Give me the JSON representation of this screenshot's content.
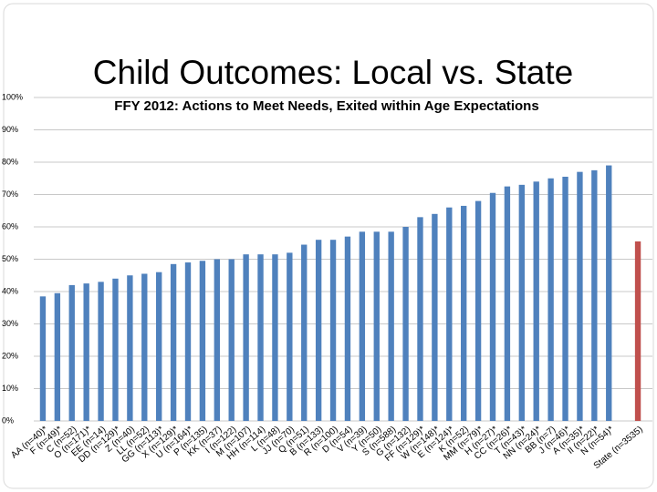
{
  "chart_data": {
    "type": "bar",
    "title": "Child Outcomes: Local vs. State",
    "subtitle": "FFY 2012: Actions to Meet Needs, Exited within Age Expectations",
    "categories": [
      "AA (n=40)*",
      "F (n=49)*",
      "C (n=52)",
      "O (n=171)*",
      "EE (n=14)",
      "DD (n=129)*",
      "Z (n=40)",
      "LL (n=52)",
      "GG (n=113)*",
      "X (n=129)*",
      "U (n=164)*",
      "P (n=135)",
      "KK (n=37)",
      "I (n=122)",
      "M (n=107)",
      "HH (n=114)",
      "L (n=48)",
      "JJ (n=70)",
      "Q (n=51)",
      "B (n=133)",
      "R (n=100)",
      "D (n=54)",
      "V (n=39)",
      "Y (n=50)",
      "S (n=588)",
      "G (n=132)",
      "FF (n=129)*",
      "W (n=148)*",
      "E (n=124)*",
      "K (n=52)",
      "MM (n=79)*",
      "H (n=27)*",
      "CC (n=26)*",
      "T (n=43)*",
      "NN (n=24)*",
      "BB (n=7)",
      "J (n=46)*",
      "A (n=35)*",
      "II (n=22)*",
      "N (n=54)*",
      null,
      "State (n=3535)"
    ],
    "values": [
      38.5,
      39.5,
      42,
      42.5,
      43,
      44,
      45,
      45.5,
      46,
      48.5,
      49,
      49.5,
      50,
      50,
      51.5,
      51.5,
      51.5,
      52,
      54.5,
      56,
      56,
      57,
      58.5,
      58.5,
      58.5,
      60,
      63,
      64,
      66,
      66.5,
      68,
      70.5,
      72.5,
      73,
      74,
      75,
      75.5,
      77,
      77.5,
      79,
      null,
      55.5
    ],
    "colors": [
      "#4f81bd",
      "#4f81bd",
      "#4f81bd",
      "#4f81bd",
      "#4f81bd",
      "#4f81bd",
      "#4f81bd",
      "#4f81bd",
      "#4f81bd",
      "#4f81bd",
      "#4f81bd",
      "#4f81bd",
      "#4f81bd",
      "#4f81bd",
      "#4f81bd",
      "#4f81bd",
      "#4f81bd",
      "#4f81bd",
      "#4f81bd",
      "#4f81bd",
      "#4f81bd",
      "#4f81bd",
      "#4f81bd",
      "#4f81bd",
      "#4f81bd",
      "#4f81bd",
      "#4f81bd",
      "#4f81bd",
      "#4f81bd",
      "#4f81bd",
      "#4f81bd",
      "#4f81bd",
      "#4f81bd",
      "#4f81bd",
      "#4f81bd",
      "#4f81bd",
      "#4f81bd",
      "#4f81bd",
      "#4f81bd",
      "#4f81bd",
      null,
      "#c0504d"
    ],
    "ylim": [
      0,
      100
    ],
    "yticks": [
      {
        "value": 0,
        "label": "0%"
      },
      {
        "value": 10,
        "label": "10%"
      },
      {
        "value": 20,
        "label": "20%"
      },
      {
        "value": 30,
        "label": "30%"
      },
      {
        "value": 40,
        "label": "40%"
      },
      {
        "value": 50,
        "label": "50%"
      },
      {
        "value": 60,
        "label": "60%"
      },
      {
        "value": 70,
        "label": "70%"
      },
      {
        "value": 80,
        "label": "80%"
      },
      {
        "value": 90,
        "label": "90%"
      },
      {
        "value": 100,
        "label": "100%"
      }
    ],
    "grid": true
  }
}
